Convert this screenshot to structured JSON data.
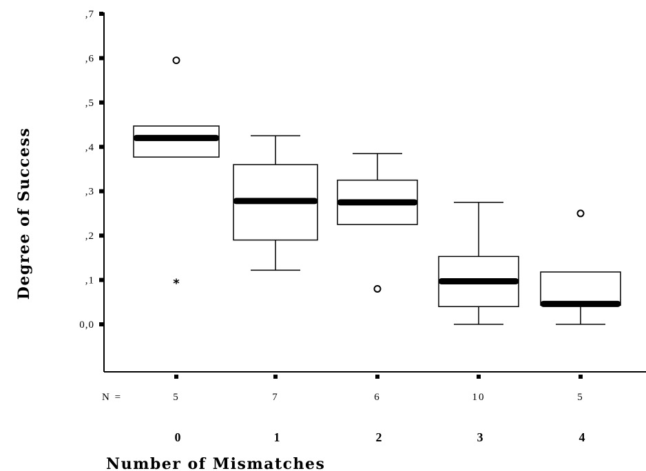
{
  "chart_data": {
    "type": "boxplot",
    "xlabel": "Number of Mismatches",
    "ylabel": "Degree of Success",
    "ylim": [
      -0.1,
      0.7
    ],
    "yticks": [
      {
        "value": 0.7,
        "label": ",7"
      },
      {
        "value": 0.6,
        "label": ",6"
      },
      {
        "value": 0.5,
        "label": ",5"
      },
      {
        "value": 0.4,
        "label": ",4"
      },
      {
        "value": 0.3,
        "label": ",3"
      },
      {
        "value": 0.2,
        "label": ",2"
      },
      {
        "value": 0.1,
        "label": ",1"
      },
      {
        "value": 0.0,
        "label": "0,0"
      }
    ],
    "n_prefix": "N =",
    "grid": false,
    "categories": [
      {
        "label": "0",
        "n": "5",
        "q1": 0.377,
        "median": 0.42,
        "q3": 0.447,
        "whisker_low": null,
        "whisker_high": null,
        "outliers": [
          0.595
        ],
        "extremes": [
          0.097
        ]
      },
      {
        "label": "1",
        "n": "7",
        "q1": 0.19,
        "median": 0.278,
        "q3": 0.36,
        "whisker_low": 0.122,
        "whisker_high": 0.425,
        "outliers": [],
        "extremes": []
      },
      {
        "label": "2",
        "n": "6",
        "q1": 0.225,
        "median": 0.275,
        "q3": 0.325,
        "whisker_low": null,
        "whisker_high": 0.385,
        "outliers": [
          0.08
        ],
        "extremes": []
      },
      {
        "label": "3",
        "n": "10",
        "q1": 0.04,
        "median": 0.097,
        "q3": 0.153,
        "whisker_low": 0.0,
        "whisker_high": 0.275,
        "outliers": [],
        "extremes": []
      },
      {
        "label": "4",
        "n": "5",
        "q1": 0.043,
        "median": 0.046,
        "q3": 0.118,
        "whisker_low": 0.0,
        "whisker_high": null,
        "outliers": [
          0.25
        ],
        "extremes": []
      }
    ]
  }
}
